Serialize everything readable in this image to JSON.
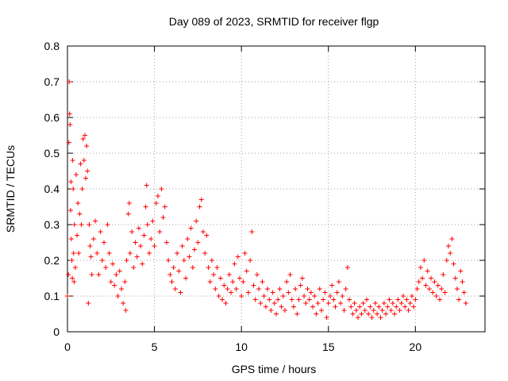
{
  "chart_data": {
    "type": "scatter",
    "title": "Day 089 of 2023, SRMTID for receiver flgp",
    "xlabel": "GPS time / hours",
    "ylabel": "SRMTID / TECUs",
    "xlim": [
      0,
      24
    ],
    "ylim": [
      0,
      0.8
    ],
    "x_ticks": [
      0,
      5,
      10,
      15,
      20
    ],
    "y_ticks": [
      0,
      0.1,
      0.2,
      0.3,
      0.4,
      0.5,
      0.6,
      0.7,
      0.8
    ],
    "x_tick_labels": [
      "0",
      "5",
      "10",
      "15",
      "20"
    ],
    "y_tick_labels": [
      "0",
      "0.1",
      "0.2",
      "0.3",
      "0.4",
      "0.5",
      "0.6",
      "0.7",
      "0.8"
    ],
    "grid": true,
    "marker": "plus",
    "color": "#ff0000",
    "series": [
      {
        "name": "SRMTID",
        "points": [
          [
            0.0,
            0.1
          ],
          [
            0.05,
            0.16
          ],
          [
            0.08,
            0.53
          ],
          [
            0.1,
            0.7
          ],
          [
            0.12,
            0.61
          ],
          [
            0.15,
            0.58
          ],
          [
            0.18,
            0.34
          ],
          [
            0.2,
            0.42
          ],
          [
            0.22,
            0.26
          ],
          [
            0.25,
            0.2
          ],
          [
            0.28,
            0.15
          ],
          [
            0.3,
            0.48
          ],
          [
            0.33,
            0.4
          ],
          [
            0.35,
            0.22
          ],
          [
            0.38,
            0.14
          ],
          [
            0.4,
            0.3
          ],
          [
            0.45,
            0.18
          ],
          [
            0.5,
            0.44
          ],
          [
            0.55,
            0.27
          ],
          [
            0.6,
            0.36
          ],
          [
            0.65,
            0.22
          ],
          [
            0.7,
            0.33
          ],
          [
            0.75,
            0.47
          ],
          [
            0.8,
            0.3
          ],
          [
            0.85,
            0.4
          ],
          [
            0.9,
            0.54
          ],
          [
            0.95,
            0.48
          ],
          [
            1.0,
            0.55
          ],
          [
            1.05,
            0.43
          ],
          [
            1.1,
            0.52
          ],
          [
            1.15,
            0.45
          ],
          [
            1.2,
            0.08
          ],
          [
            1.25,
            0.3
          ],
          [
            1.3,
            0.24
          ],
          [
            1.35,
            0.21
          ],
          [
            1.4,
            0.16
          ],
          [
            1.5,
            0.26
          ],
          [
            1.6,
            0.31
          ],
          [
            1.7,
            0.22
          ],
          [
            1.8,
            0.16
          ],
          [
            1.9,
            0.28
          ],
          [
            2.0,
            0.2
          ],
          [
            2.1,
            0.25
          ],
          [
            2.2,
            0.18
          ],
          [
            2.3,
            0.3
          ],
          [
            2.4,
            0.22
          ],
          [
            2.5,
            0.14
          ],
          [
            2.6,
            0.19
          ],
          [
            2.7,
            0.13
          ],
          [
            2.8,
            0.16
          ],
          [
            2.9,
            0.1
          ],
          [
            3.0,
            0.17
          ],
          [
            3.1,
            0.12
          ],
          [
            3.2,
            0.08
          ],
          [
            3.3,
            0.14
          ],
          [
            3.35,
            0.06
          ],
          [
            3.4,
            0.2
          ],
          [
            3.5,
            0.33
          ],
          [
            3.55,
            0.36
          ],
          [
            3.6,
            0.22
          ],
          [
            3.7,
            0.28
          ],
          [
            3.8,
            0.18
          ],
          [
            3.9,
            0.25
          ],
          [
            4.0,
            0.21
          ],
          [
            4.1,
            0.29
          ],
          [
            4.2,
            0.24
          ],
          [
            4.3,
            0.19
          ],
          [
            4.4,
            0.27
          ],
          [
            4.5,
            0.35
          ],
          [
            4.55,
            0.41
          ],
          [
            4.6,
            0.3
          ],
          [
            4.7,
            0.22
          ],
          [
            4.8,
            0.26
          ],
          [
            4.9,
            0.31
          ],
          [
            5.0,
            0.24
          ],
          [
            5.1,
            0.36
          ],
          [
            5.2,
            0.38
          ],
          [
            5.3,
            0.28
          ],
          [
            5.4,
            0.4
          ],
          [
            5.5,
            0.32
          ],
          [
            5.6,
            0.35
          ],
          [
            5.7,
            0.25
          ],
          [
            5.8,
            0.2
          ],
          [
            5.9,
            0.16
          ],
          [
            6.0,
            0.14
          ],
          [
            6.1,
            0.18
          ],
          [
            6.2,
            0.12
          ],
          [
            6.3,
            0.22
          ],
          [
            6.4,
            0.17
          ],
          [
            6.5,
            0.11
          ],
          [
            6.6,
            0.24
          ],
          [
            6.7,
            0.2
          ],
          [
            6.8,
            0.15
          ],
          [
            6.9,
            0.26
          ],
          [
            7.0,
            0.21
          ],
          [
            7.1,
            0.29
          ],
          [
            7.2,
            0.18
          ],
          [
            7.3,
            0.23
          ],
          [
            7.4,
            0.31
          ],
          [
            7.5,
            0.25
          ],
          [
            7.6,
            0.35
          ],
          [
            7.7,
            0.37
          ],
          [
            7.8,
            0.28
          ],
          [
            7.9,
            0.22
          ],
          [
            8.0,
            0.27
          ],
          [
            8.1,
            0.18
          ],
          [
            8.2,
            0.14
          ],
          [
            8.3,
            0.2
          ],
          [
            8.4,
            0.16
          ],
          [
            8.5,
            0.12
          ],
          [
            8.6,
            0.18
          ],
          [
            8.7,
            0.1
          ],
          [
            8.8,
            0.15
          ],
          [
            8.9,
            0.09
          ],
          [
            9.0,
            0.13
          ],
          [
            9.1,
            0.08
          ],
          [
            9.2,
            0.12
          ],
          [
            9.3,
            0.16
          ],
          [
            9.4,
            0.11
          ],
          [
            9.5,
            0.14
          ],
          [
            9.6,
            0.19
          ],
          [
            9.7,
            0.12
          ],
          [
            9.8,
            0.21
          ],
          [
            9.9,
            0.15
          ],
          [
            10.0,
            0.1
          ],
          [
            10.1,
            0.14
          ],
          [
            10.2,
            0.22
          ],
          [
            10.3,
            0.17
          ],
          [
            10.4,
            0.11
          ],
          [
            10.5,
            0.2
          ],
          [
            10.6,
            0.28
          ],
          [
            10.7,
            0.13
          ],
          [
            10.8,
            0.09
          ],
          [
            10.9,
            0.16
          ],
          [
            11.0,
            0.12
          ],
          [
            11.1,
            0.08
          ],
          [
            11.2,
            0.14
          ],
          [
            11.3,
            0.1
          ],
          [
            11.4,
            0.07
          ],
          [
            11.5,
            0.12
          ],
          [
            11.6,
            0.09
          ],
          [
            11.7,
            0.06
          ],
          [
            11.8,
            0.11
          ],
          [
            11.9,
            0.08
          ],
          [
            12.0,
            0.05
          ],
          [
            12.1,
            0.09
          ],
          [
            12.2,
            0.12
          ],
          [
            12.3,
            0.07
          ],
          [
            12.4,
            0.1
          ],
          [
            12.5,
            0.06
          ],
          [
            12.6,
            0.14
          ],
          [
            12.7,
            0.11
          ],
          [
            12.8,
            0.16
          ],
          [
            12.9,
            0.09
          ],
          [
            13.0,
            0.07
          ],
          [
            13.1,
            0.12
          ],
          [
            13.2,
            0.05
          ],
          [
            13.3,
            0.09
          ],
          [
            13.4,
            0.13
          ],
          [
            13.5,
            0.15
          ],
          [
            13.6,
            0.1
          ],
          [
            13.7,
            0.08
          ],
          [
            13.8,
            0.12
          ],
          [
            13.9,
            0.09
          ],
          [
            14.0,
            0.11
          ],
          [
            14.1,
            0.07
          ],
          [
            14.2,
            0.1
          ],
          [
            14.3,
            0.05
          ],
          [
            14.4,
            0.08
          ],
          [
            14.5,
            0.12
          ],
          [
            14.6,
            0.06
          ],
          [
            14.7,
            0.09
          ],
          [
            14.8,
            0.11
          ],
          [
            14.9,
            0.04
          ],
          [
            15.0,
            0.08
          ],
          [
            15.1,
            0.1
          ],
          [
            15.2,
            0.13
          ],
          [
            15.3,
            0.09
          ],
          [
            15.4,
            0.07
          ],
          [
            15.5,
            0.11
          ],
          [
            15.6,
            0.14
          ],
          [
            15.7,
            0.08
          ],
          [
            15.8,
            0.1
          ],
          [
            15.9,
            0.06
          ],
          [
            16.0,
            0.12
          ],
          [
            16.1,
            0.18
          ],
          [
            16.2,
            0.09
          ],
          [
            16.3,
            0.07
          ],
          [
            16.4,
            0.05
          ],
          [
            16.5,
            0.08
          ],
          [
            16.6,
            0.06
          ],
          [
            16.7,
            0.04
          ],
          [
            16.8,
            0.07
          ],
          [
            16.9,
            0.05
          ],
          [
            17.0,
            0.08
          ],
          [
            17.1,
            0.06
          ],
          [
            17.2,
            0.09
          ],
          [
            17.3,
            0.05
          ],
          [
            17.4,
            0.07
          ],
          [
            17.5,
            0.04
          ],
          [
            17.6,
            0.06
          ],
          [
            17.7,
            0.08
          ],
          [
            17.8,
            0.05
          ],
          [
            17.9,
            0.07
          ],
          [
            18.0,
            0.04
          ],
          [
            18.1,
            0.06
          ],
          [
            18.2,
            0.08
          ],
          [
            18.3,
            0.05
          ],
          [
            18.4,
            0.07
          ],
          [
            18.5,
            0.09
          ],
          [
            18.6,
            0.06
          ],
          [
            18.7,
            0.08
          ],
          [
            18.8,
            0.05
          ],
          [
            18.9,
            0.07
          ],
          [
            19.0,
            0.09
          ],
          [
            19.1,
            0.06
          ],
          [
            19.2,
            0.08
          ],
          [
            19.3,
            0.1
          ],
          [
            19.4,
            0.07
          ],
          [
            19.5,
            0.09
          ],
          [
            19.6,
            0.06
          ],
          [
            19.7,
            0.08
          ],
          [
            19.8,
            0.1
          ],
          [
            19.9,
            0.07
          ],
          [
            20.0,
            0.09
          ],
          [
            20.1,
            0.12
          ],
          [
            20.2,
            0.14
          ],
          [
            20.3,
            0.18
          ],
          [
            20.4,
            0.15
          ],
          [
            20.5,
            0.2
          ],
          [
            20.6,
            0.13
          ],
          [
            20.7,
            0.17
          ],
          [
            20.8,
            0.12
          ],
          [
            20.9,
            0.15
          ],
          [
            21.0,
            0.11
          ],
          [
            21.1,
            0.14
          ],
          [
            21.2,
            0.1
          ],
          [
            21.3,
            0.13
          ],
          [
            21.4,
            0.09
          ],
          [
            21.5,
            0.12
          ],
          [
            21.6,
            0.16
          ],
          [
            21.7,
            0.11
          ],
          [
            21.8,
            0.2
          ],
          [
            21.9,
            0.24
          ],
          [
            22.0,
            0.22
          ],
          [
            22.1,
            0.26
          ],
          [
            22.2,
            0.19
          ],
          [
            22.3,
            0.15
          ],
          [
            22.4,
            0.12
          ],
          [
            22.5,
            0.09
          ],
          [
            22.6,
            0.17
          ],
          [
            22.7,
            0.14
          ],
          [
            22.8,
            0.11
          ],
          [
            22.9,
            0.08
          ]
        ]
      }
    ]
  }
}
